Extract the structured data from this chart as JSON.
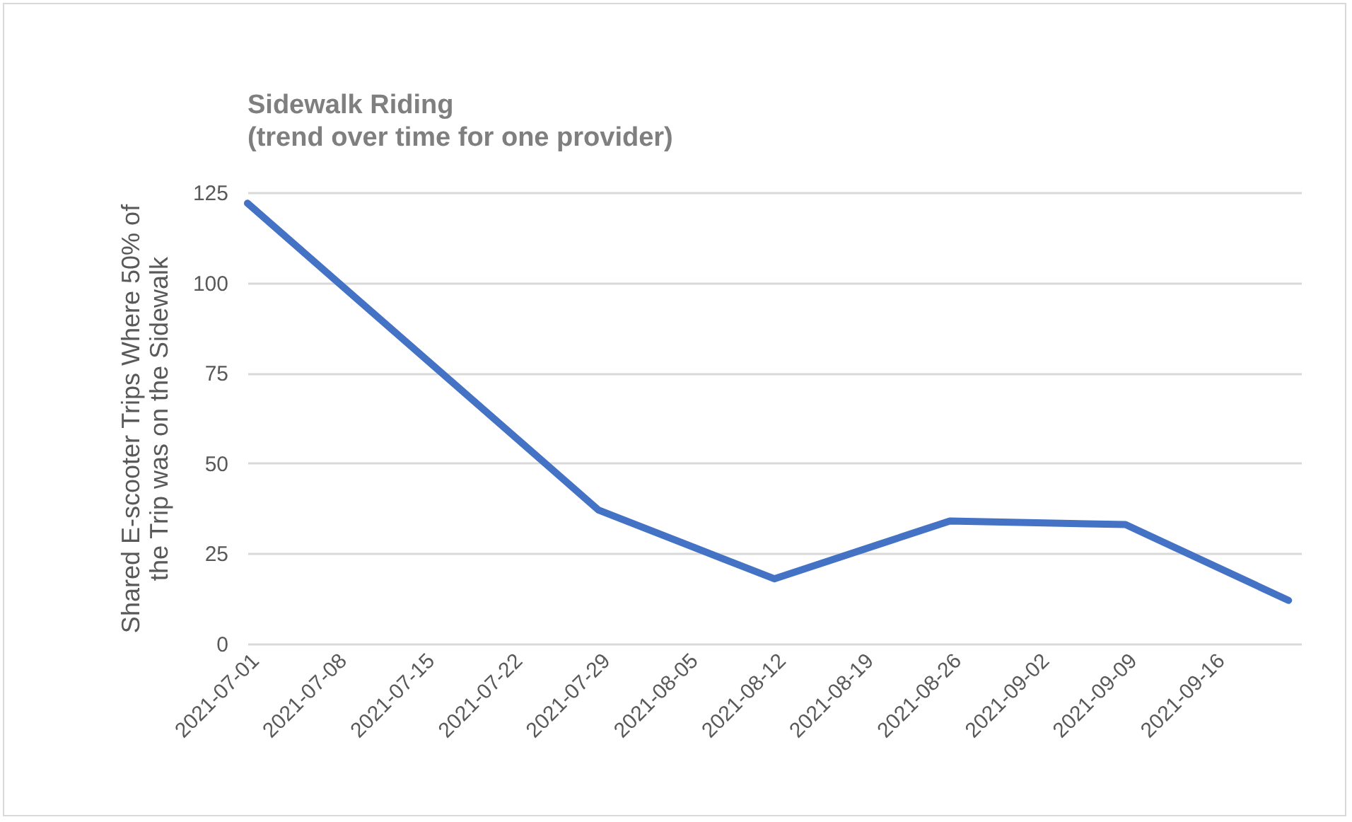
{
  "chart_data": {
    "type": "line",
    "title": "Sidewalk Riding",
    "subtitle": "(trend over time for one provider)",
    "ylabel": "Shared E-scooter Trips Where 50% of the Trip was on the Sidewalk",
    "x": [
      "2021-07-01",
      "2021-07-29",
      "2021-08-12",
      "2021-08-26",
      "2021-09-09",
      "2021-09-22"
    ],
    "series": [
      {
        "color": "#4472c4",
        "values": [
          122,
          37,
          18,
          34,
          33,
          12
        ]
      }
    ],
    "xlim": [
      "2021-07-01",
      "2021-09-23"
    ],
    "xticks": [
      "2021-07-01",
      "2021-07-08",
      "2021-07-15",
      "2021-07-22",
      "2021-07-29",
      "2021-08-05",
      "2021-08-12",
      "2021-08-19",
      "2021-08-26",
      "2021-09-02",
      "2021-09-09",
      "2021-09-16"
    ],
    "ylim": [
      0,
      125
    ],
    "yticks": [
      0,
      25,
      50,
      75,
      100,
      125
    ],
    "grid": "y",
    "legend": false,
    "marker": "none",
    "line_style": "solid"
  }
}
